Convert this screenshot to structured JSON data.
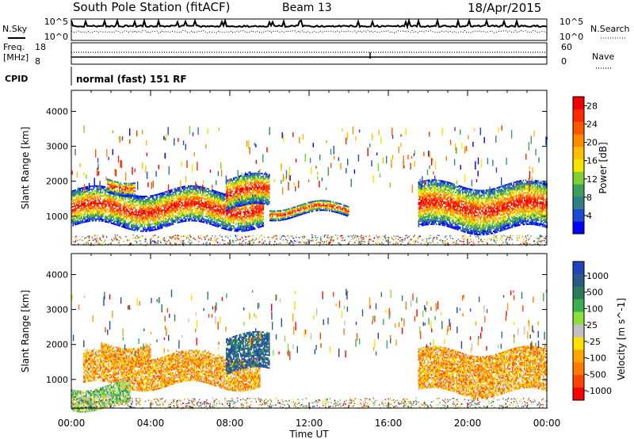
{
  "header": {
    "station": "South Pole Station (fitACF)",
    "beam": "Beam 13",
    "date": "18/Apr/2015"
  },
  "strip": {
    "nsky_label": "N.Sky",
    "nsearch_label": "N.Search",
    "noise_ticks": [
      "10^5",
      "10^0"
    ],
    "freq_label_1": "Freq.",
    "freq_label_2": "[MHz]",
    "freq_ticks": [
      "18",
      "8"
    ],
    "nave_label": "Nave",
    "nave_ticks": [
      "60",
      "0"
    ],
    "cpid_label": "CPID",
    "cpid_text": "normal (fast) 151 RF"
  },
  "colors": {
    "power_scale": [
      "#0000ff",
      "#1e4bd2",
      "#2f7f86",
      "#3ca05c",
      "#7fd02f",
      "#f2e600",
      "#ffbf00",
      "#ff8c00",
      "#ff5500",
      "#ff2a00",
      "#f00000"
    ],
    "velocity_scale": [
      "#2244bb",
      "#2a5a8a",
      "#2f7a5a",
      "#3cb050",
      "#8adf3c",
      "#c0c0c0",
      "#ffdf00",
      "#ffa500",
      "#ff7a00",
      "#ff4500",
      "#ff0000"
    ]
  },
  "chart_data": [
    {
      "type": "heatmap",
      "title": "",
      "xlabel": "Time UT",
      "ylabel": "Slant Range [km]",
      "x_ticks": [
        "00:00",
        "04:00",
        "08:00",
        "12:00",
        "16:00",
        "20:00",
        "00:00"
      ],
      "x_range_hours": [
        0,
        24
      ],
      "ylim": [
        180,
        4600
      ],
      "y_ticks": [
        1000,
        2000,
        3000,
        4000
      ],
      "colorbar": {
        "label": "Power [dB]",
        "ticks": [
          4,
          8,
          12,
          16,
          20,
          24,
          28
        ],
        "range": [
          0,
          30
        ]
      },
      "echo_bands": [
        {
          "t0": 0.0,
          "t1": 9.7,
          "r0": 700,
          "r1": 1700
        },
        {
          "t0": 1.8,
          "t1": 3.2,
          "r0": 1700,
          "r1": 2100
        },
        {
          "t0": 7.8,
          "t1": 10.0,
          "r0": 1200,
          "r1": 2100
        },
        {
          "t0": 17.5,
          "t1": 24.0,
          "r0": 600,
          "r1": 1900
        },
        {
          "t0": 10.0,
          "t1": 14.0,
          "r0": 1000,
          "r1": 1300
        }
      ]
    },
    {
      "type": "heatmap",
      "title": "",
      "xlabel": "Time UT",
      "ylabel": "Slant Range [km]",
      "x_ticks": [
        "00:00",
        "04:00",
        "08:00",
        "12:00",
        "16:00",
        "20:00",
        "00:00"
      ],
      "x_range_hours": [
        0,
        24
      ],
      "ylim": [
        180,
        4600
      ],
      "y_ticks": [
        1000,
        2000,
        3000,
        4000
      ],
      "colorbar": {
        "label": "Velocity [m s^-1]",
        "ticks": [
          1000,
          500,
          100,
          25,
          -25,
          -100,
          -500,
          -1000
        ]
      },
      "echo_bands": [
        {
          "t0": 0.6,
          "t1": 9.5,
          "r0": 800,
          "r1": 1700
        },
        {
          "t0": 1.5,
          "t1": 4.0,
          "r0": 1500,
          "r1": 2000
        },
        {
          "t0": 7.8,
          "t1": 10.0,
          "r0": 1200,
          "r1": 2200
        },
        {
          "t0": 17.5,
          "t1": 24.0,
          "r0": 600,
          "r1": 1800
        },
        {
          "t0": 0.0,
          "t1": 3.0,
          "r0": 200,
          "r1": 800
        }
      ]
    }
  ]
}
